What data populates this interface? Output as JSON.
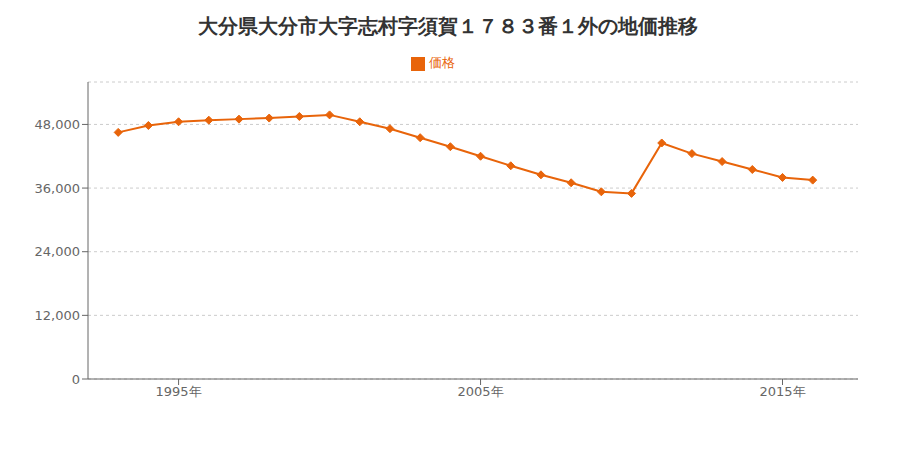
{
  "chart_data": {
    "type": "line",
    "title": "大分県大分市大字志村字須賀１７８３番１外の地価推移",
    "x": [
      1993,
      1994,
      1995,
      1996,
      1997,
      1998,
      1999,
      2000,
      2001,
      2002,
      2003,
      2004,
      2005,
      2006,
      2007,
      2008,
      2009,
      2010,
      2011,
      2012,
      2013,
      2014,
      2015,
      2016
    ],
    "series": [
      {
        "name": "価格",
        "color": "#E8640A",
        "marker": "diamond",
        "values": [
          46500,
          47800,
          48500,
          48800,
          49000,
          49200,
          49500,
          49800,
          48500,
          47200,
          45500,
          43800,
          42000,
          40200,
          38500,
          37000,
          35300,
          35000,
          44500,
          42500,
          41000,
          39500,
          38000,
          37500
        ]
      }
    ],
    "xlim": [
      1992,
      2017.5
    ],
    "xticks": [
      {
        "value": 1995,
        "label": "1995年"
      },
      {
        "value": 2005,
        "label": "2005年"
      },
      {
        "value": 2015,
        "label": "2015年"
      }
    ],
    "ylim": [
      0,
      56000
    ],
    "yticks": [
      0,
      {
        "value": 12000,
        "label": "12,000"
      },
      {
        "value": 24000,
        "label": "24,000"
      },
      {
        "value": 36000,
        "label": "36,000"
      },
      {
        "value": 48000,
        "label": "48,000"
      }
    ],
    "grid": "y",
    "legend": "top"
  }
}
